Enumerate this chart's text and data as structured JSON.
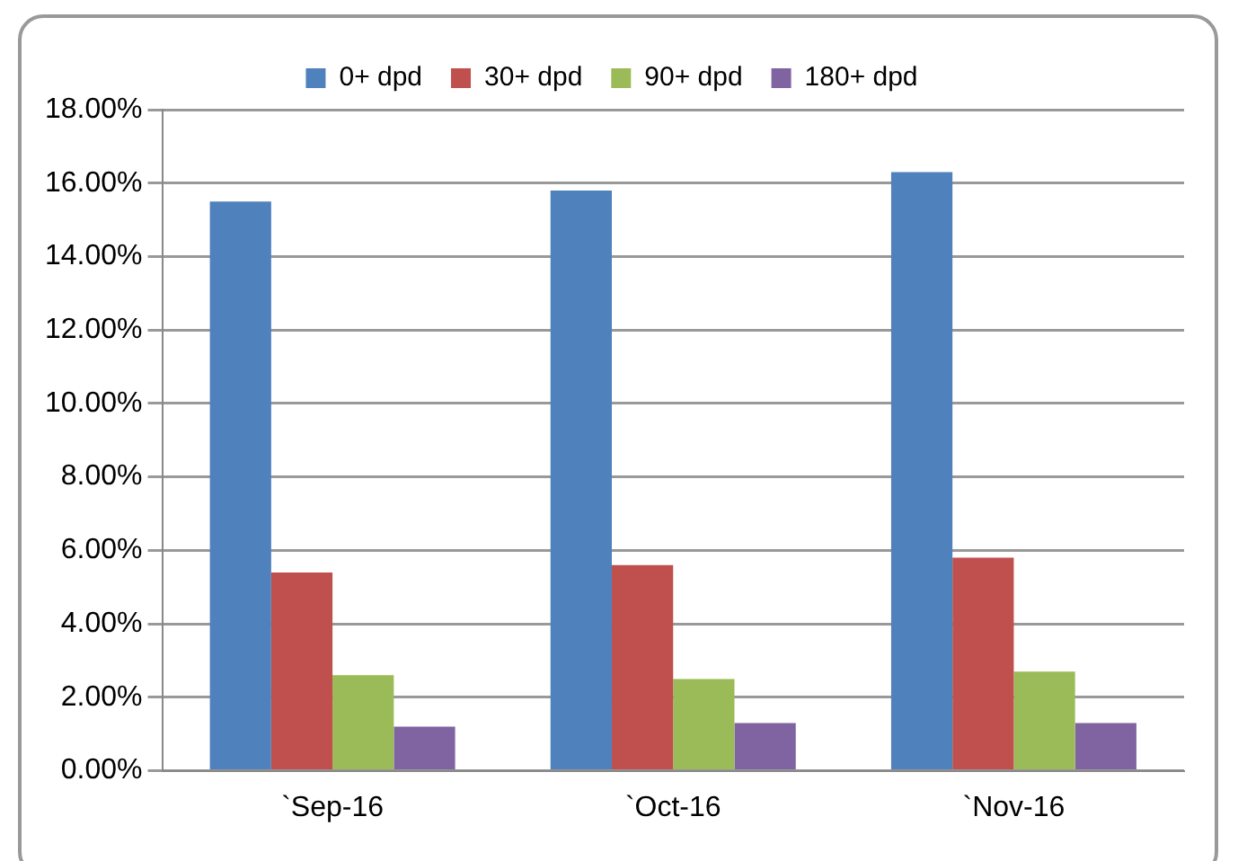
{
  "chart_data": {
    "type": "bar",
    "categories": [
      "`Sep-16",
      "`Oct-16",
      "`Nov-16"
    ],
    "series": [
      {
        "name": "0+ dpd",
        "color": "#4f81bd",
        "values": [
          15.5,
          15.8,
          16.3
        ]
      },
      {
        "name": "30+ dpd",
        "color": "#c0504d",
        "values": [
          5.4,
          5.6,
          5.8
        ]
      },
      {
        "name": "90+ dpd",
        "color": "#9bbb59",
        "values": [
          2.6,
          2.5,
          2.7
        ]
      },
      {
        "name": "180+ dpd",
        "color": "#8064a2",
        "values": [
          1.2,
          1.3,
          1.3
        ]
      }
    ],
    "ylim": [
      0,
      18
    ],
    "yticks": [
      {
        "value": 0,
        "label": "0.00%"
      },
      {
        "value": 2,
        "label": "2.00%"
      },
      {
        "value": 4,
        "label": "4.00%"
      },
      {
        "value": 6,
        "label": "6.00%"
      },
      {
        "value": 8,
        "label": "8.00%"
      },
      {
        "value": 10,
        "label": "10.00%"
      },
      {
        "value": 12,
        "label": "12.00%"
      },
      {
        "value": 14,
        "label": "14.00%"
      },
      {
        "value": 16,
        "label": "16.00%"
      },
      {
        "value": 18,
        "label": "18.00%"
      }
    ],
    "grid": "y",
    "legend": "top"
  }
}
